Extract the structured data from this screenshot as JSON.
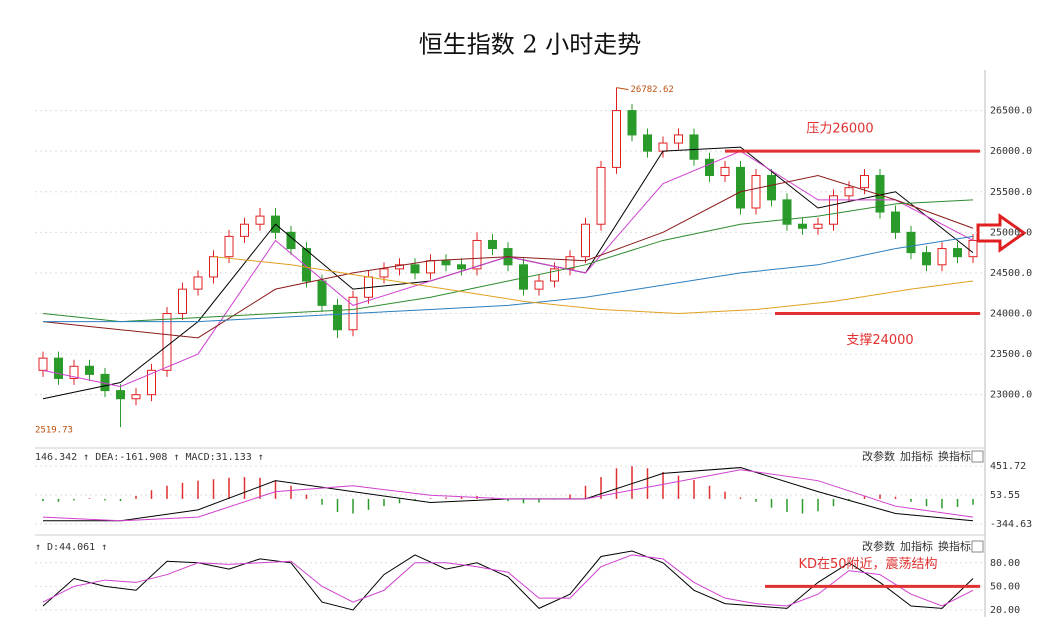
{
  "title": "恒生指数 2 小时走势",
  "chart_data": [
    {
      "type": "candlestick",
      "open": [
        23300,
        23450,
        23200,
        23350,
        23250,
        23050,
        22950,
        23000,
        23300,
        24000,
        24300,
        24450,
        24700,
        24950,
        25100,
        25200,
        25000,
        24800,
        24400,
        24100,
        23800,
        24200,
        24450,
        24550,
        24600,
        24500,
        24650,
        24600,
        24550,
        24900,
        24800,
        24600,
        24300,
        24400,
        24550,
        24700,
        25100,
        25800,
        26500,
        26200,
        26000,
        26100,
        26200,
        25900,
        25700,
        25800,
        25300,
        25700,
        25400,
        25100,
        25050,
        25100,
        25450,
        25550,
        25700,
        25250,
        25000,
        24750,
        24600,
        24800,
        24700
      ],
      "high": [
        23530,
        23530,
        23430,
        23430,
        23330,
        23130,
        23080,
        23380,
        24080,
        24380,
        24530,
        24780,
        25030,
        25180,
        25300,
        25300,
        25080,
        24880,
        24480,
        24180,
        24280,
        24530,
        24630,
        24680,
        24680,
        24730,
        24730,
        24680,
        25000,
        24980,
        24880,
        24680,
        24480,
        24630,
        24780,
        25180,
        25880,
        26782.62,
        26580,
        26280,
        26180,
        26280,
        26280,
        25980,
        25880,
        25880,
        25780,
        25780,
        25480,
        25180,
        25180,
        25530,
        25630,
        25780,
        25780,
        25330,
        25080,
        24830,
        24880,
        24880,
        24980
      ],
      "low": [
        23220,
        23120,
        23120,
        23170,
        22970,
        22600,
        22870,
        22920,
        23220,
        23920,
        24220,
        24370,
        24620,
        24870,
        25020,
        24920,
        24720,
        24320,
        24020,
        23700,
        23720,
        24120,
        24370,
        24470,
        24420,
        24420,
        24520,
        24470,
        24470,
        24720,
        24520,
        24220,
        24220,
        24320,
        24470,
        24620,
        25020,
        25720,
        26120,
        25920,
        25920,
        26020,
        25820,
        25620,
        25620,
        25220,
        25220,
        25320,
        25020,
        24970,
        24970,
        25020,
        25370,
        25470,
        25170,
        24920,
        24670,
        24520,
        24520,
        24620,
        24620
      ],
      "close": [
        23450,
        23200,
        23350,
        23250,
        23050,
        22950,
        23000,
        23300,
        24000,
        24300,
        24450,
        24700,
        24950,
        25100,
        25200,
        25000,
        24800,
        24400,
        24100,
        23800,
        24200,
        24450,
        24550,
        24600,
        24500,
        24650,
        24600,
        24550,
        24900,
        24800,
        24600,
        24300,
        24400,
        24550,
        24700,
        25100,
        25800,
        26500,
        26200,
        26000,
        26100,
        26200,
        25900,
        25700,
        25800,
        25300,
        25700,
        25400,
        25100,
        25050,
        25100,
        25450,
        25550,
        25700,
        25250,
        25000,
        24750,
        24600,
        24800,
        24700,
        24900
      ],
      "up_color": "#e02020",
      "down_color": "#2a9a2a",
      "series": [
        {
          "color": "#000000",
          "x": [
            0,
            5,
            10,
            15,
            20,
            25,
            30,
            35,
            40,
            45,
            50,
            55,
            60
          ],
          "values": [
            22950,
            23150,
            23900,
            25100,
            24300,
            24400,
            24700,
            24500,
            26000,
            26050,
            25300,
            25500,
            24750
          ]
        },
        {
          "color": "#d040d0",
          "x": [
            0,
            5,
            10,
            15,
            20,
            25,
            30,
            35,
            40,
            45,
            50,
            55,
            60
          ],
          "values": [
            23300,
            23100,
            23500,
            24900,
            24100,
            24400,
            24700,
            24500,
            25600,
            26000,
            25400,
            25400,
            24900
          ]
        },
        {
          "color": "#8b1a1a",
          "x": [
            0,
            5,
            10,
            15,
            20,
            25,
            30,
            35,
            40,
            45,
            50,
            55,
            60
          ],
          "values": [
            23900,
            23800,
            23700,
            24300,
            24500,
            24650,
            24700,
            24650,
            25000,
            25500,
            25700,
            25400,
            25050
          ]
        },
        {
          "color": "#2e8b2e",
          "x": [
            0,
            5,
            10,
            15,
            20,
            25,
            30,
            35,
            40,
            45,
            50,
            55,
            60
          ],
          "values": [
            24000,
            23900,
            23950,
            24000,
            24050,
            24200,
            24400,
            24600,
            24900,
            25100,
            25200,
            25350,
            25400
          ]
        },
        {
          "color": "#2a7fc0",
          "x": [
            0,
            5,
            10,
            15,
            20,
            25,
            30,
            35,
            40,
            45,
            50,
            55,
            60
          ],
          "values": [
            23900,
            23900,
            23900,
            23950,
            24000,
            24050,
            24100,
            24200,
            24350,
            24500,
            24600,
            24800,
            24950
          ]
        },
        {
          "color": "#e0a020",
          "x": [
            11,
            16,
            21,
            26,
            31,
            36,
            41,
            46,
            51,
            56,
            60
          ],
          "values": [
            24700,
            24600,
            24450,
            24300,
            24150,
            24050,
            24000,
            24050,
            24150,
            24300,
            24400
          ]
        }
      ],
      "ylim": [
        22380,
        27000
      ],
      "yticks": [
        {
          "value": 23000,
          "label": "23000.0"
        },
        {
          "value": 23500,
          "label": "23500.0"
        },
        {
          "value": 24000,
          "label": "24000.0"
        },
        {
          "value": 24500,
          "label": "24500.0"
        },
        {
          "value": 25000,
          "label": "25000.0"
        },
        {
          "value": 25500,
          "label": "25500.0"
        },
        {
          "value": 26000,
          "label": "26000.0"
        },
        {
          "value": 26500,
          "label": "26500.0"
        }
      ],
      "grid": true,
      "low_label": "2519.73",
      "annotations": [
        {
          "text": "压力26000",
          "value": 26000,
          "color": "#e03030"
        },
        {
          "text": "支撑24000",
          "value": 24000,
          "color": "#e03030"
        }
      ]
    },
    {
      "type": "macd",
      "header": "146.342 ↑ DEA:-161.908 ↑ MACD:31.133 ↑",
      "buttons": [
        "改参数",
        "加指标",
        "换指标"
      ],
      "values": [
        -30,
        -40,
        -20,
        10,
        -20,
        -30,
        40,
        120,
        180,
        220,
        250,
        270,
        290,
        300,
        290,
        250,
        180,
        60,
        -80,
        -180,
        -200,
        -150,
        -100,
        -60,
        -20,
        10,
        20,
        30,
        40,
        20,
        -30,
        -60,
        -50,
        -10,
        60,
        180,
        300,
        420,
        450,
        420,
        370,
        320,
        260,
        180,
        100,
        20,
        -40,
        -120,
        -180,
        -200,
        -170,
        -100,
        -20,
        40,
        60,
        30,
        -40,
        -100,
        -130,
        -110,
        -80
      ],
      "up_color": "#e03030",
      "down_color": "#2a9a2a",
      "series": [
        {
          "color": "#000000",
          "x": [
            0,
            5,
            10,
            15,
            20,
            25,
            30,
            35,
            40,
            45,
            50,
            55,
            60
          ],
          "values": [
            -300,
            -300,
            -150,
            250,
            100,
            -50,
            0,
            0,
            350,
            430,
            100,
            -200,
            -300
          ]
        },
        {
          "color": "#d040d0",
          "x": [
            0,
            5,
            10,
            15,
            20,
            25,
            30,
            35,
            40,
            45,
            50,
            55,
            60
          ],
          "values": [
            -250,
            -300,
            -250,
            100,
            180,
            50,
            0,
            0,
            200,
            400,
            250,
            -100,
            -250
          ]
        }
      ],
      "ylim": [
        -454,
        671
      ],
      "yticks": [
        -344.63,
        53.55,
        451.72
      ],
      "grid": true
    },
    {
      "type": "kd",
      "header": "↑ D:44.061 ↑",
      "buttons": [
        "改参数",
        "加指标",
        "换指标"
      ],
      "series": [
        {
          "color": "#000000",
          "x": [
            0,
            2,
            4,
            6,
            8,
            10,
            12,
            14,
            16,
            18,
            20,
            22,
            24,
            26,
            28,
            30,
            32,
            34,
            36,
            38,
            40,
            42,
            44,
            46,
            48,
            50,
            52,
            54,
            56,
            58,
            60
          ],
          "values": [
            25,
            60,
            50,
            45,
            82,
            80,
            72,
            85,
            80,
            30,
            20,
            65,
            90,
            72,
            80,
            62,
            22,
            40,
            88,
            95,
            80,
            45,
            28,
            25,
            22,
            55,
            80,
            55,
            25,
            22,
            60
          ]
        },
        {
          "color": "#d040d0",
          "x": [
            0,
            2,
            4,
            6,
            8,
            10,
            12,
            14,
            16,
            18,
            20,
            22,
            24,
            26,
            28,
            30,
            32,
            34,
            36,
            38,
            40,
            42,
            44,
            46,
            48,
            50,
            52,
            54,
            56,
            58,
            60
          ],
          "values": [
            30,
            50,
            58,
            55,
            65,
            80,
            78,
            80,
            82,
            50,
            30,
            45,
            80,
            80,
            75,
            68,
            35,
            35,
            75,
            90,
            85,
            55,
            35,
            28,
            25,
            40,
            70,
            65,
            40,
            25,
            45
          ]
        }
      ],
      "ylim": [
        11,
        109
      ],
      "yticks": [
        {
          "value": 20,
          "label": "20.00"
        },
        {
          "value": 50,
          "label": "50.00"
        },
        {
          "value": 80,
          "label": "80.00"
        }
      ],
      "grid": true,
      "annotations": [
        {
          "text": "KD在50附近，震荡结构",
          "value": 50,
          "color": "#e03030"
        }
      ]
    }
  ]
}
